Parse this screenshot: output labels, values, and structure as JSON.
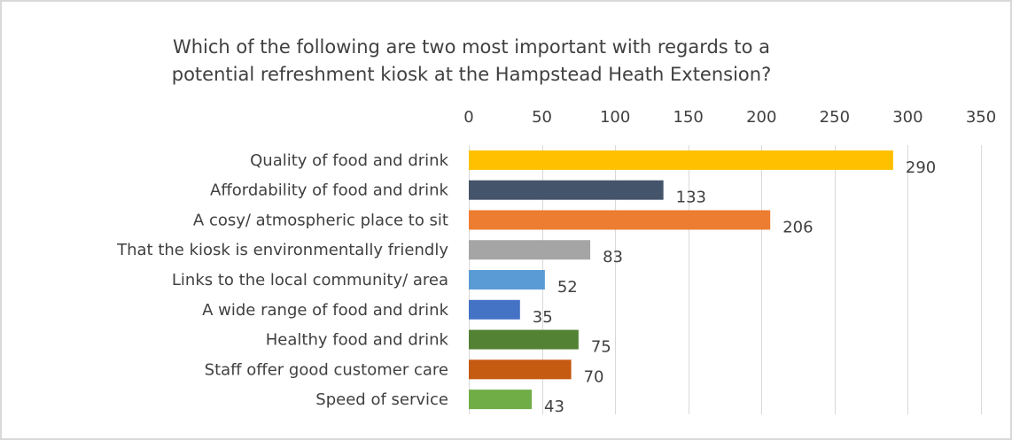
{
  "chart_data": {
    "type": "bar",
    "orientation": "horizontal",
    "title_lines": [
      "Which of the following are two most important with regards to a",
      "potential refreshment kiosk at the Hampstead Heath Extension?"
    ],
    "categories": [
      "Quality of food and drink",
      "Affordability of food and drink",
      "A cosy/ atmospheric place to sit",
      "That the kiosk is environmentally friendly",
      "Links to the local community/ area",
      "A wide range of food and drink",
      "Healthy food and drink",
      "Staff offer good customer care",
      "Speed of service"
    ],
    "values": [
      290,
      133,
      206,
      83,
      52,
      35,
      75,
      70,
      43
    ],
    "colors": [
      "#ffc000",
      "#44546a",
      "#ed7d31",
      "#a5a5a5",
      "#5b9bd5",
      "#4472c4",
      "#548235",
      "#c55a11",
      "#70ad47"
    ],
    "xlim": [
      0,
      350
    ],
    "xticks": [
      0,
      50,
      100,
      150,
      200,
      250,
      300,
      350
    ],
    "axis_position": "top",
    "grid": true,
    "gridline_color": "#d9d9d9"
  }
}
